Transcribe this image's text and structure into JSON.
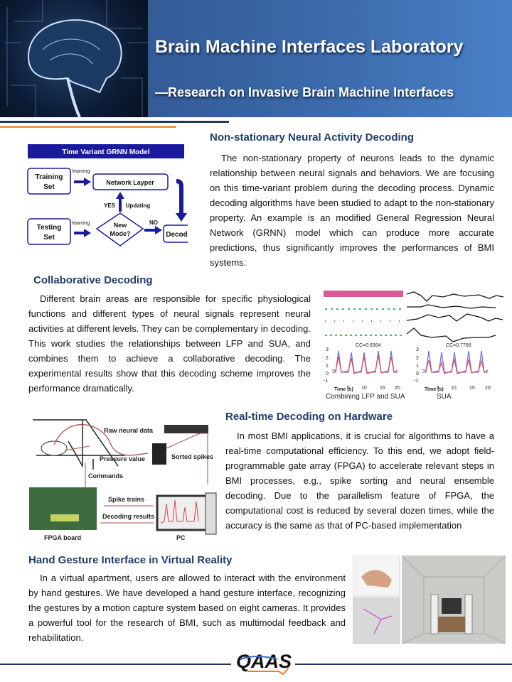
{
  "header": {
    "title": "Brain Machine Interfaces Laboratory",
    "subtitle": "—Research on Invasive Brain Machine Interfaces"
  },
  "sections": [
    {
      "heading": "Non-stationary Neural Activity Decoding",
      "text": "The non-stationary property of neurons leads to the dynamic relationship between neural signals and behaviors. We are focusing on this time-variant problem during the decoding process. Dynamic decoding algorithms have been studied to adapt to the non-stationary property. An example is an modified General Regression Neural Network (GRNN) model  which can produce more accurate predictions, thus significantly improves the performances of BMI systems."
    },
    {
      "heading": "Collaborative Decoding",
      "text": "Different brain areas are responsible for specific physiological functions and different types of neural signals represent neural activities at different levels.  They can be complementary in decoding. This work studies the relationships between LFP and SUA, and combines them to achieve a collaborative decoding. The experimental results show that this decoding scheme improves the performance dramatically."
    },
    {
      "heading": "Real-time Decoding on Hardware",
      "text": "In most BMI applications, it is crucial for algorithms to have a real-time computational efficiency. To this end, we adopt field-programmable gate array (FPGA) to accelerate relevant steps in BMI processes, e.g., spike sorting and neural ensemble decoding. Due to the parallelism feature of FPGA, the computational cost is reduced by several dozen times, while the accuracy is the same as that of PC-based implementation"
    },
    {
      "heading": "Hand Gesture Interface in Virtual Reality",
      "text": "In a virtual apartment, users are allowed to interact with the environment by hand gestures. We have developed a hand gesture interface, recognizing the gestures by a motion capture system based on eight cameras.  It provides a powerful tool for the research of BMI, such as multimodal feedback and rehabilitation."
    }
  ],
  "grnn": {
    "title": "Time Variant GRNN Model",
    "training": "Training",
    "training2": "Set",
    "testing": "Testing",
    "testing2": "Set",
    "learning": "learning",
    "network": "Network Layper",
    "yes": "YES",
    "updating": "Updating",
    "new": "New",
    "mode": "Mode?",
    "no": "NO",
    "decoding": "Decoding"
  },
  "lfp": {
    "cc1": "CC=0.8364",
    "cc2": "CC=0.7766",
    "xlabel": "Time (s)",
    "cap1": "Combining LFP and SUA",
    "cap2": "SUA",
    "yticks": [
      "3",
      "2",
      "1",
      "0",
      "-1"
    ],
    "xticks": [
      "5",
      "10",
      "15",
      "20"
    ]
  },
  "hw": {
    "raw": "Raw neural data",
    "pressure": "Pressure value",
    "sorted": "Sorted spikes",
    "commands": "Commands",
    "spike": "Spike trains",
    "results": "Decoding results",
    "fpga": "FPGA board",
    "pc": "PC"
  },
  "footer": {
    "logo": "QAAS"
  },
  "colors": {
    "navy": "#22385e",
    "orange": "#ef9a4b",
    "heading": "#1f3c6b",
    "diagram_blue": "#1a1a9c"
  }
}
